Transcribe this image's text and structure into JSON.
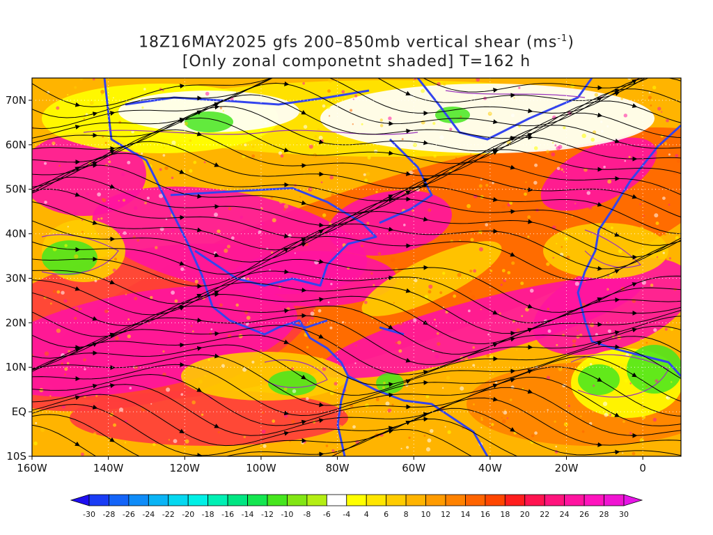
{
  "title": {
    "line1_prefix": "18Z16MAY2025 gfs 200–850mb vertical shear (ms",
    "line1_sup": "-1",
    "line1_suffix": ")",
    "line2": "[Only zonal componetnt shaded] T=162 h"
  },
  "axes": {
    "lat_labels": [
      "70N",
      "60N",
      "50N",
      "40N",
      "30N",
      "20N",
      "10N",
      "EQ",
      "10S"
    ],
    "lat_values": [
      70,
      60,
      50,
      40,
      30,
      20,
      10,
      0,
      -10
    ],
    "lon_labels": [
      "160W",
      "140W",
      "120W",
      "100W",
      "80W",
      "60W",
      "40W",
      "20W",
      "0"
    ],
    "lon_values": [
      -160,
      -140,
      -120,
      -100,
      -80,
      -60,
      -40,
      -20,
      0
    ],
    "lon_range": [
      -160,
      10
    ],
    "lat_range": [
      -10,
      75
    ]
  },
  "colorbar": {
    "labels": [
      "-30",
      "-28",
      "-26",
      "-24",
      "-22",
      "-20",
      "-18",
      "-16",
      "-14",
      "-12",
      "-10",
      "-8",
      "-6",
      "-4",
      "4",
      "6",
      "8",
      "10",
      "12",
      "14",
      "16",
      "18",
      "20",
      "22",
      "24",
      "26",
      "28",
      "30"
    ],
    "colors": [
      "#1e0ef0",
      "#1a3cf5",
      "#1464f8",
      "#0f8cf8",
      "#0ab4f5",
      "#05d8f0",
      "#00f0e6",
      "#00f0b4",
      "#00e682",
      "#14e650",
      "#46e61e",
      "#82e614",
      "#b4ee14",
      "#ffffff",
      "#ffff00",
      "#ffe600",
      "#ffcc00",
      "#ffb400",
      "#ff9b00",
      "#ff8200",
      "#ff6400",
      "#ff4600",
      "#ff1e1e",
      "#ff1450",
      "#ff147d",
      "#ff14a0",
      "#ff14be",
      "#f014d2",
      "#e614e6"
    ]
  }
}
